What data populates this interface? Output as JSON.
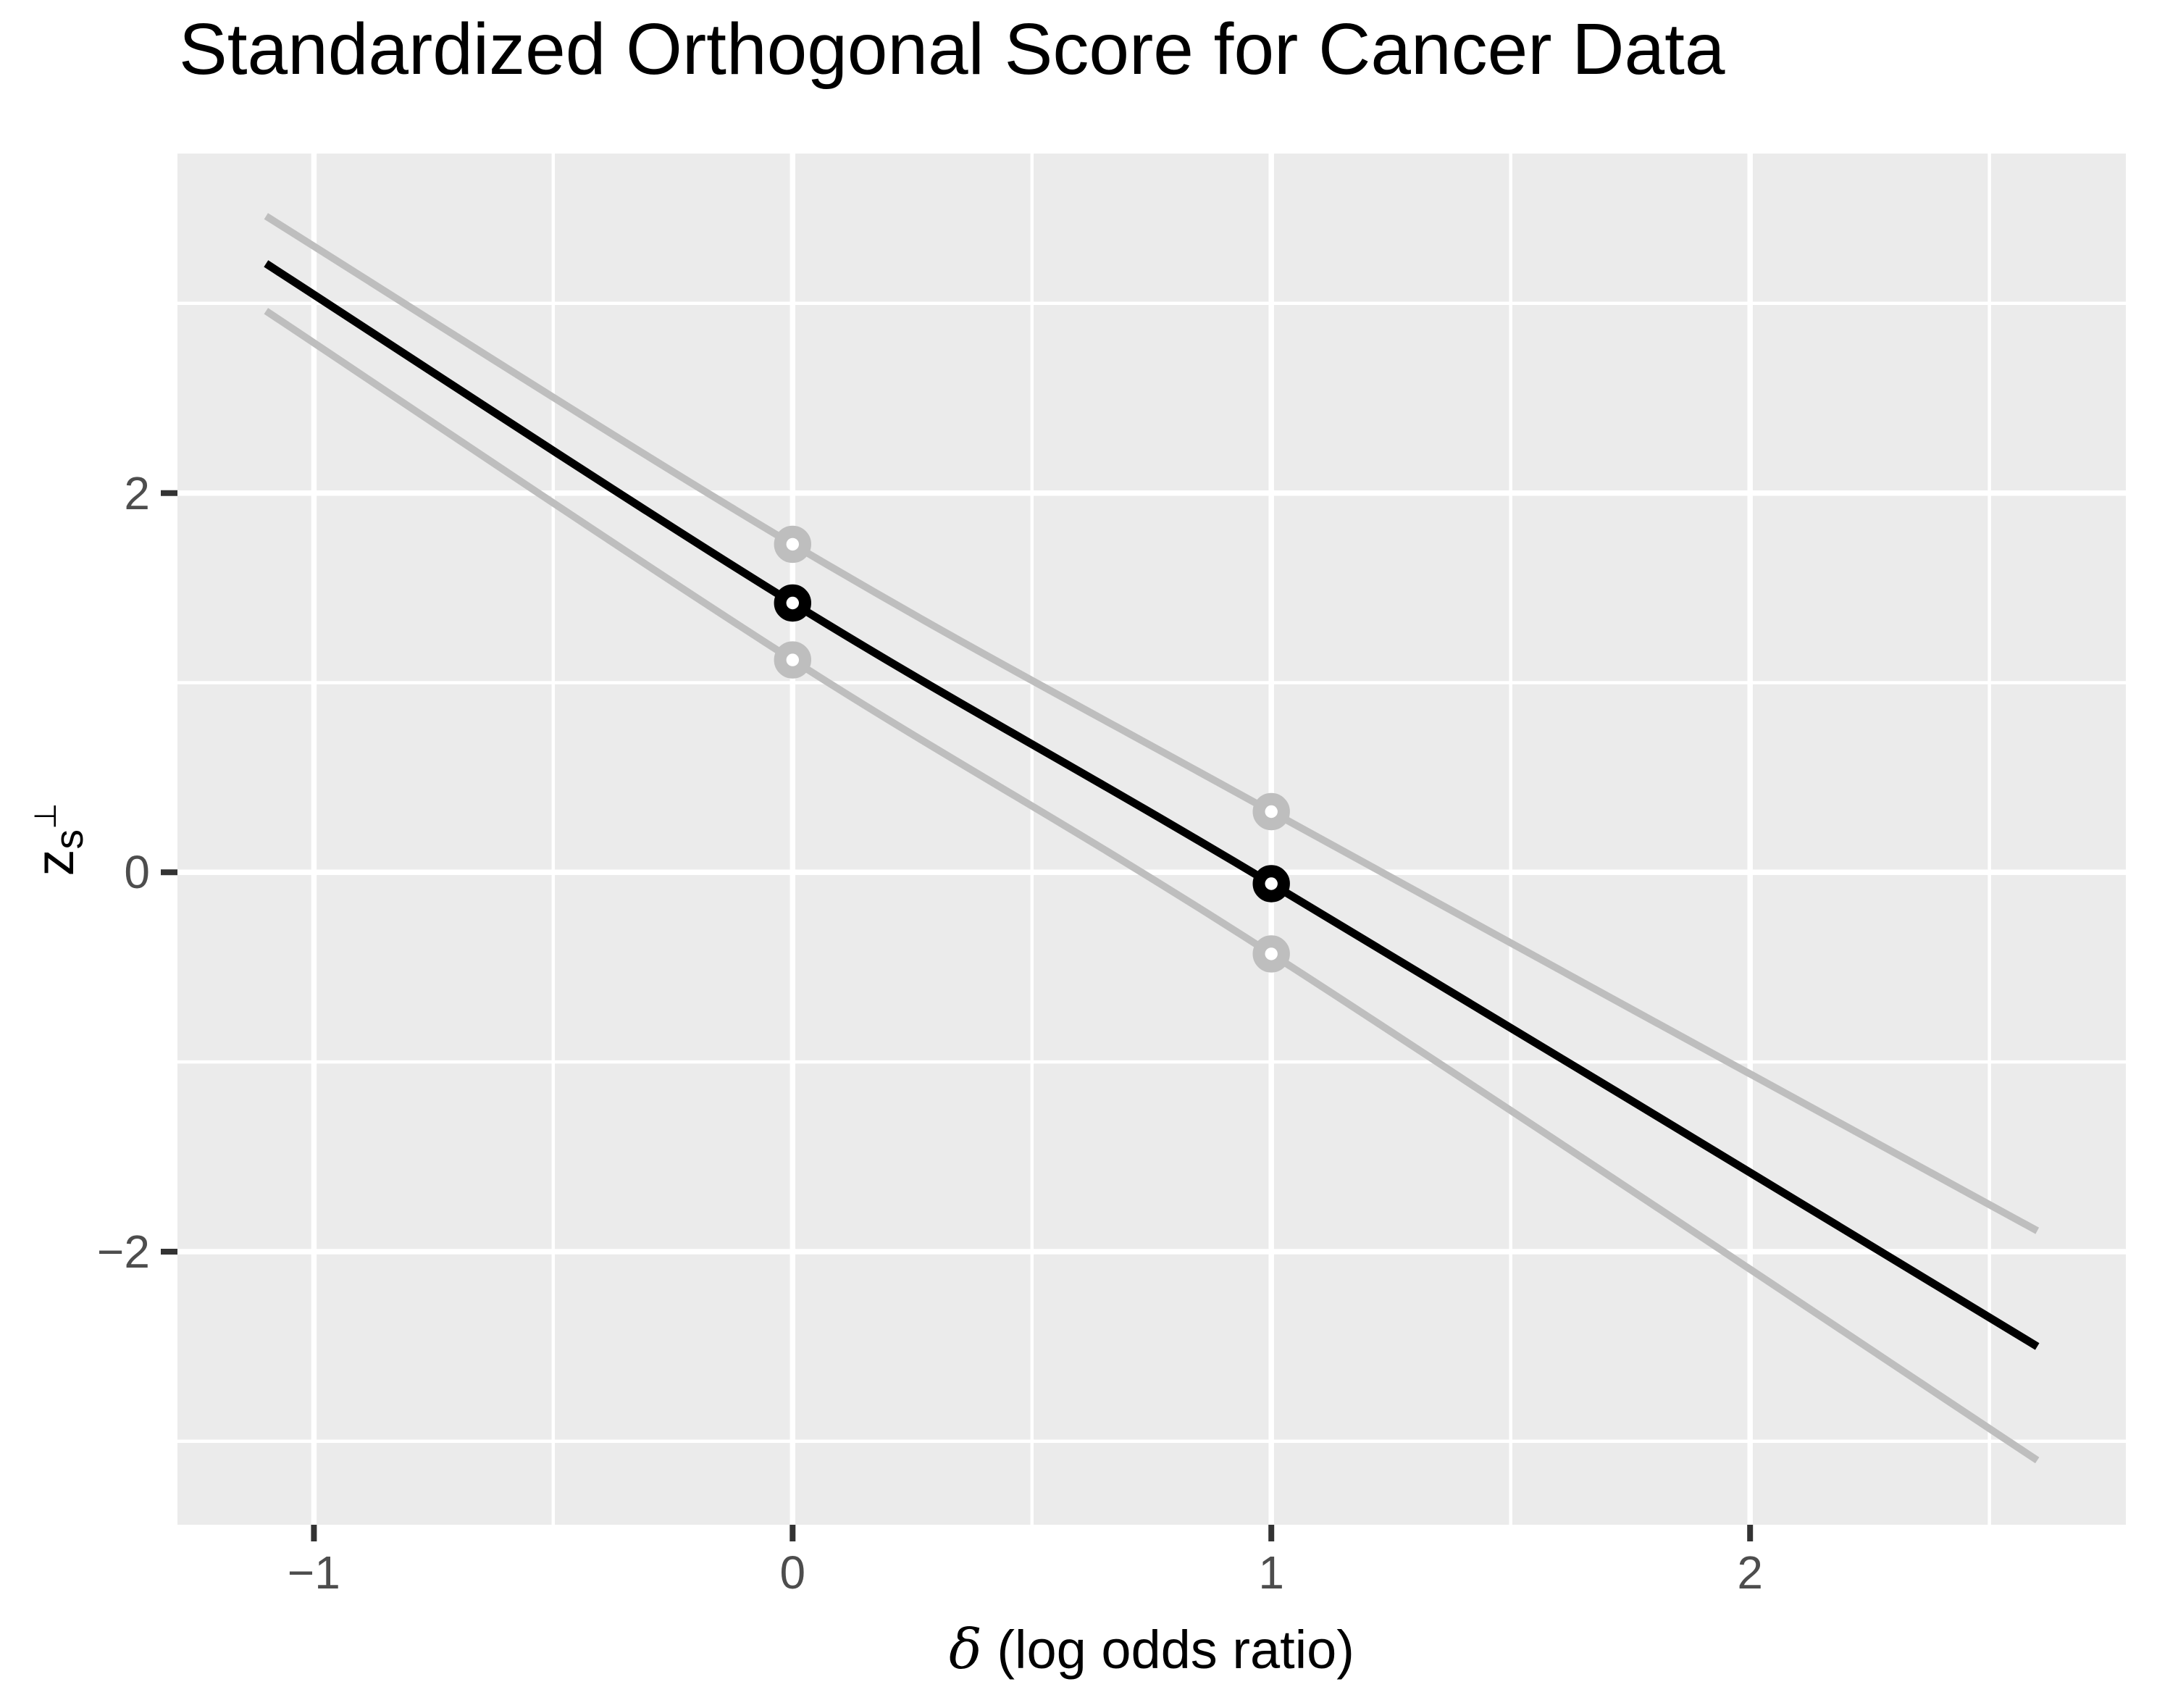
{
  "title": "Standardized Orthogonal Score for Cancer Data",
  "axes": {
    "xlabel_symbol": "δ",
    "xlabel_text": " (log odds ratio)",
    "ylabel_main": "z",
    "ylabel_sub": "s",
    "ylabel_sup": "⊥"
  },
  "chart_data": {
    "type": "line",
    "title": "Standardized Orthogonal Score for Cancer Data",
    "xlabel": "δ (log odds ratio)",
    "ylabel": "z_{s^⊥}",
    "xlim": [
      -1.285,
      2.785
    ],
    "ylim": [
      -3.44,
      3.79
    ],
    "grid": "on",
    "legend": "none",
    "x_ticks": [
      {
        "value": -1,
        "label": "−1"
      },
      {
        "value": 0,
        "label": "0"
      },
      {
        "value": 1,
        "label": "1"
      },
      {
        "value": 2,
        "label": "2"
      }
    ],
    "y_ticks": [
      {
        "value": 2,
        "label": "2"
      },
      {
        "value": 0,
        "label": "0"
      },
      {
        "value": -2,
        "label": "−2"
      }
    ],
    "x_minor_gridlines": [
      -0.5,
      0.5,
      1.5,
      2.5
    ],
    "y_minor_gridlines": [
      -3,
      -1,
      1,
      3
    ],
    "series": [
      {
        "name": "upper-band-line",
        "role": "band-upper",
        "color": "#BEBEBE",
        "width": 10,
        "x": [
          -1.1,
          0,
          1,
          2.6
        ],
        "y": [
          3.46,
          1.73,
          0.32,
          -1.89
        ]
      },
      {
        "name": "lower-band-line",
        "role": "band-lower",
        "color": "#BEBEBE",
        "width": 10,
        "x": [
          -1.1,
          0,
          1,
          2.6
        ],
        "y": [
          2.96,
          1.12,
          -0.43,
          -3.1
        ]
      },
      {
        "name": "score-line",
        "role": "estimate",
        "color": "#000000",
        "width": 11,
        "x": [
          -1.1,
          0,
          1,
          2.6
        ],
        "y": [
          3.21,
          1.42,
          -0.06,
          -2.5
        ]
      }
    ],
    "points": [
      {
        "x": 0,
        "y": 1.73,
        "color": "#BEBEBE",
        "series": "band-upper"
      },
      {
        "x": 0,
        "y": 1.12,
        "color": "#BEBEBE",
        "series": "band-lower"
      },
      {
        "x": 1,
        "y": 0.32,
        "color": "#BEBEBE",
        "series": "band-upper"
      },
      {
        "x": 1,
        "y": -0.43,
        "color": "#BEBEBE",
        "series": "band-lower"
      },
      {
        "x": 0,
        "y": 1.42,
        "color": "#000000",
        "series": "estimate"
      },
      {
        "x": 1,
        "y": -0.06,
        "color": "#000000",
        "series": "estimate"
      }
    ],
    "colors": {
      "panel_background": "#EBEBEB",
      "gridline": "#FFFFFF",
      "tick_mark": "#333333",
      "tick_label": "#4D4D4D",
      "line_black": "#000000",
      "line_gray": "#BEBEBE"
    }
  }
}
